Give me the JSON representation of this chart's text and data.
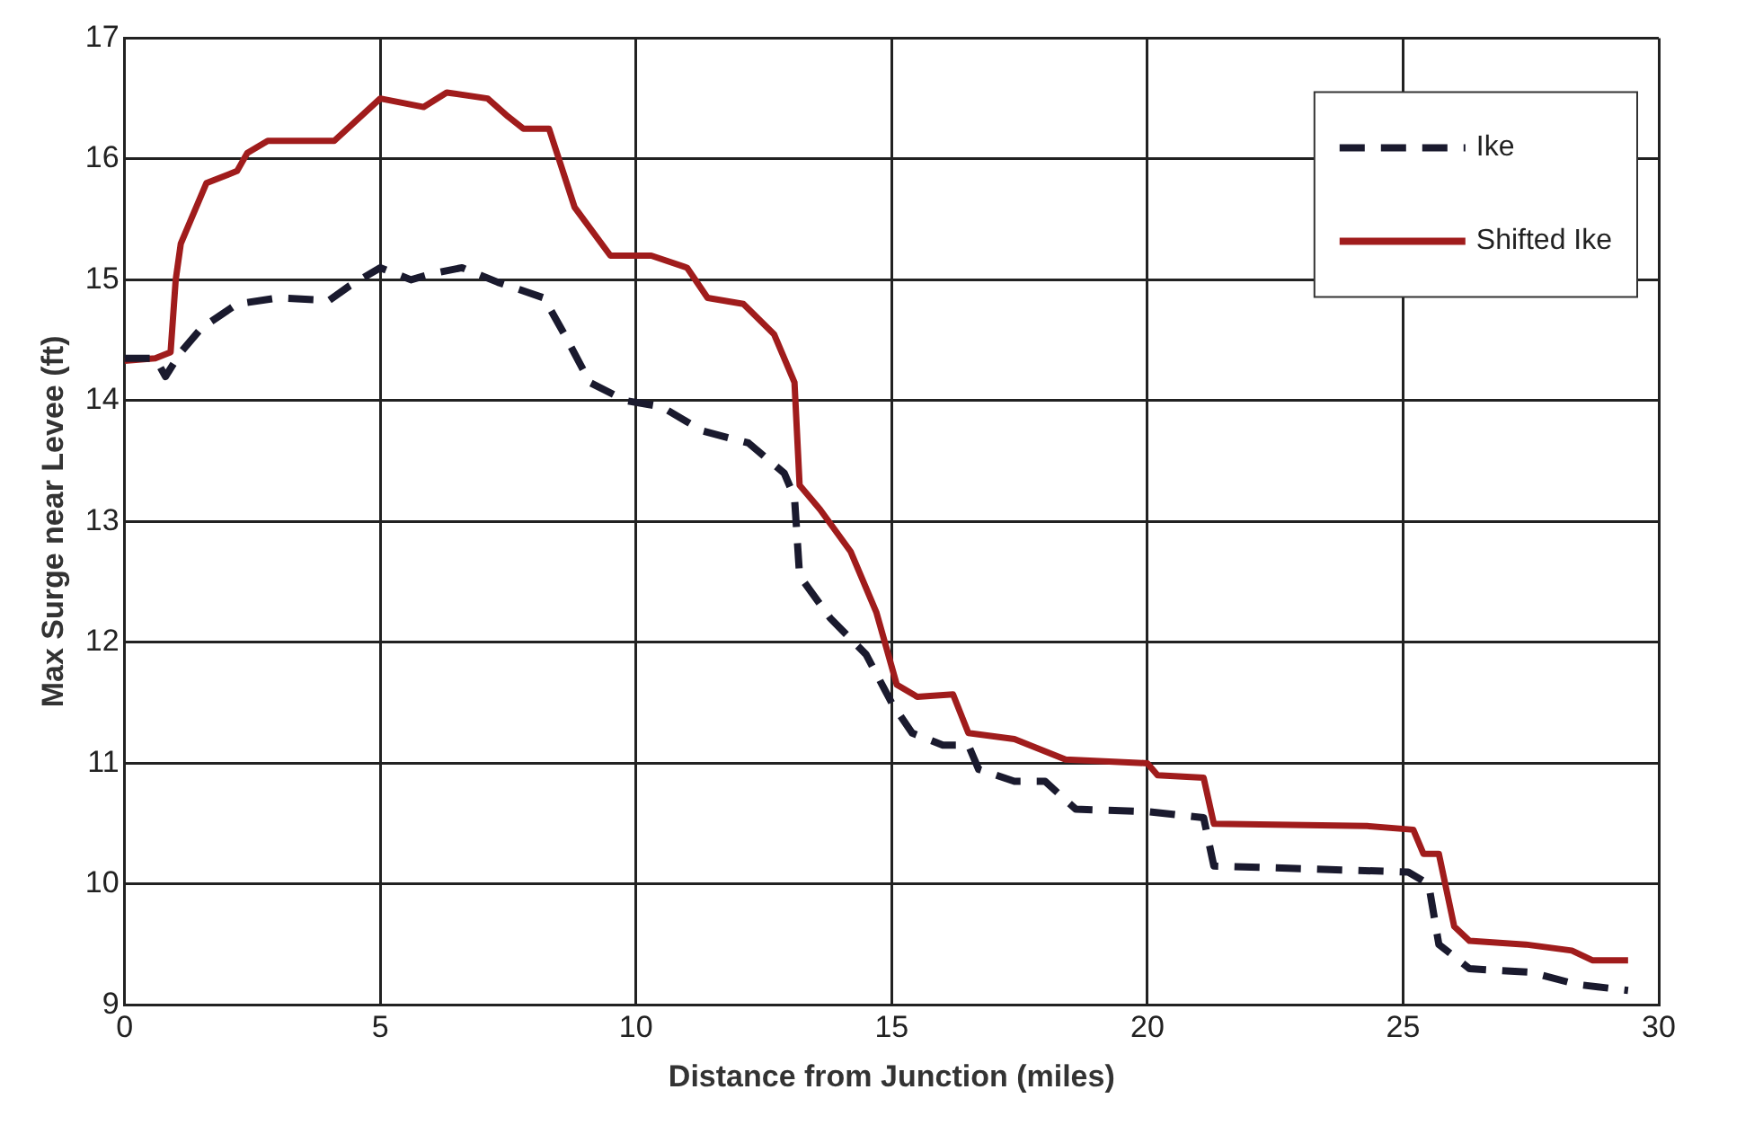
{
  "chart_data": {
    "type": "line",
    "xlabel": "Distance from Junction (miles)",
    "ylabel": "Max Surge near Levee (ft)",
    "xlim": [
      0,
      30
    ],
    "xticks": [
      0,
      5,
      10,
      15,
      20,
      25,
      30
    ],
    "ylim": [
      9,
      17
    ],
    "yticks": [
      9,
      10,
      11,
      12,
      13,
      14,
      15,
      16,
      17
    ],
    "grid": true,
    "legend": "top right",
    "marker": "none",
    "series": [
      {
        "name": "Ike",
        "color": "#1a1a2e",
        "line_style": "dashed",
        "x": [
          0,
          0.6,
          0.8,
          1.1,
          1.5,
          2.2,
          3.0,
          4.0,
          4.4,
          5.0,
          5.6,
          6.0,
          6.6,
          7.3,
          8.2,
          8.6,
          9.1,
          9.8,
          10.5,
          11.3,
          12.2,
          12.9,
          13.1,
          13.2,
          13.8,
          14.5,
          15.0,
          15.4,
          16.0,
          16.5,
          16.7,
          17.4,
          18.0,
          18.6,
          20.0,
          21.1,
          21.3,
          25.1,
          25.5,
          25.7,
          26.3,
          27.5,
          28.4,
          29.4
        ],
        "values": [
          14.35,
          14.35,
          14.2,
          14.4,
          14.6,
          14.8,
          14.85,
          14.83,
          14.95,
          15.1,
          15.0,
          15.05,
          15.1,
          14.98,
          14.85,
          14.55,
          14.15,
          14.0,
          13.95,
          13.75,
          13.65,
          13.4,
          13.2,
          12.55,
          12.2,
          11.9,
          11.5,
          11.25,
          11.15,
          11.15,
          10.95,
          10.85,
          10.85,
          10.62,
          10.6,
          10.55,
          10.15,
          10.1,
          10.0,
          9.5,
          9.3,
          9.27,
          9.17,
          9.12
        ]
      },
      {
        "name": "Shifted Ike",
        "color": "#a01c1c",
        "line_style": "solid",
        "x": [
          0,
          0.6,
          0.9,
          1.0,
          1.1,
          1.6,
          2.2,
          2.4,
          2.8,
          3.6,
          4.1,
          5.0,
          5.85,
          6.3,
          7.1,
          7.5,
          7.8,
          8.3,
          8.8,
          9.5,
          10.3,
          11.0,
          11.4,
          12.1,
          12.7,
          13.1,
          13.2,
          13.6,
          14.2,
          14.7,
          15.1,
          15.5,
          16.2,
          16.5,
          17.4,
          18.4,
          20.0,
          20.2,
          21.1,
          21.3,
          24.3,
          25.2,
          25.4,
          25.7,
          26.0,
          26.3,
          27.4,
          28.3,
          28.7,
          29.4
        ],
        "values": [
          14.33,
          14.35,
          14.4,
          15.0,
          15.3,
          15.8,
          15.9,
          16.05,
          16.15,
          16.15,
          16.15,
          16.5,
          16.43,
          16.55,
          16.5,
          16.35,
          16.25,
          16.25,
          15.6,
          15.2,
          15.2,
          15.1,
          14.85,
          14.8,
          14.55,
          14.15,
          13.3,
          13.1,
          12.75,
          12.25,
          11.65,
          11.55,
          11.57,
          11.25,
          11.2,
          11.03,
          11.0,
          10.9,
          10.88,
          10.5,
          10.48,
          10.45,
          10.25,
          10.25,
          9.65,
          9.53,
          9.5,
          9.45,
          9.37,
          9.37
        ]
      }
    ]
  }
}
